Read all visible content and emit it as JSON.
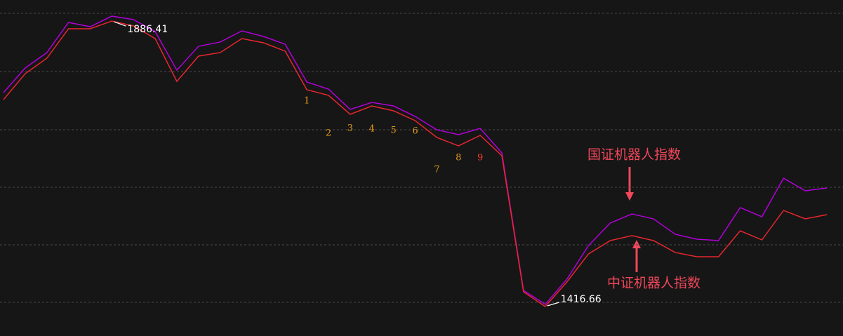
{
  "chart_data": {
    "type": "line",
    "categories": [
      null,
      null,
      null,
      null,
      null,
      null,
      null,
      null,
      null,
      null,
      null,
      null,
      null,
      null,
      null,
      null,
      null,
      null,
      null,
      null,
      null,
      null,
      null,
      null,
      null,
      null,
      null,
      null,
      null,
      null,
      null,
      null,
      null,
      null,
      null,
      null,
      null,
      null,
      null
    ],
    "series": [
      {
        "name": "国证机器人指数",
        "color": "#b000d8",
        "values": [
          1768.7,
          1809.1,
          1834.4,
          1884.1,
          1877.1,
          1894.5,
          1888.7,
          1869.1,
          1805.6,
          1844.8,
          1851.8,
          1870.2,
          1861.0,
          1848.3,
          1786.0,
          1774.4,
          1741.0,
          1752.5,
          1746.7,
          1729.4,
          1707.5,
          1699.4,
          1709.8,
          1669.4,
          1443.2,
          1420.2,
          1461.7,
          1517.1,
          1554.0,
          1569.0,
          1560.9,
          1535.6,
          1527.5,
          1525.2,
          1579.4,
          1564.4,
          1627.9,
          1607.1,
          1611.7
        ]
      },
      {
        "name": "中证机器人指数",
        "color": "#e8262e",
        "values": [
          1757.1,
          1799.8,
          1825.2,
          1873.7,
          1873.7,
          1886.41,
          1878.3,
          1857.5,
          1787.1,
          1828.7,
          1834.5,
          1857.5,
          1850.6,
          1836.8,
          1773.3,
          1764.1,
          1732.9,
          1746.7,
          1738.7,
          1722.5,
          1694.8,
          1681.0,
          1698.3,
          1664.8,
          1440.9,
          1416.66,
          1457.1,
          1503.3,
          1525.2,
          1533.3,
          1525.2,
          1505.6,
          1498.6,
          1498.6,
          1541.3,
          1526.3,
          1574.8,
          1561.0,
          1567.9
        ]
      }
    ],
    "ylim": [
      1368.2,
      1921.0
    ],
    "yticks": [
      1899.1,
      1803.3,
      1707.5,
      1612.9,
      1518.3,
      1423.6
    ],
    "grid": true,
    "sequence_counts": [
      "1",
      "2",
      "3",
      "4",
      "5",
      "6",
      "7",
      "8",
      "9"
    ]
  }
}
